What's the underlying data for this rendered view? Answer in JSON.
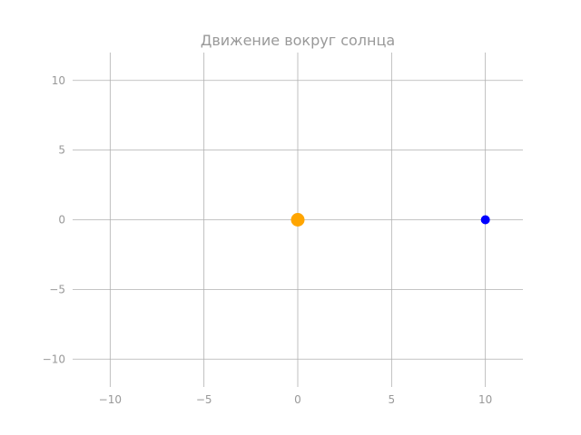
{
  "chart_data": {
    "type": "scatter",
    "title": "Движение вокруг солнца",
    "xlabel": "",
    "ylabel": "",
    "xlim": [
      -12,
      12
    ],
    "ylim": [
      -12,
      12
    ],
    "x_ticks": [
      -10,
      -5,
      0,
      5,
      10
    ],
    "y_ticks": [
      -10,
      -5,
      0,
      5,
      10
    ],
    "x_tick_labels": [
      "−10",
      "−5",
      "0",
      "5",
      "10"
    ],
    "y_tick_labels": [
      "−10",
      "−5",
      "0",
      "5",
      "10"
    ],
    "grid": true,
    "points": [
      {
        "x": 0,
        "y": 0,
        "color": "#ffa500",
        "size": "large"
      },
      {
        "x": 10,
        "y": 0,
        "color": "#0000ff",
        "size": "small"
      }
    ]
  }
}
